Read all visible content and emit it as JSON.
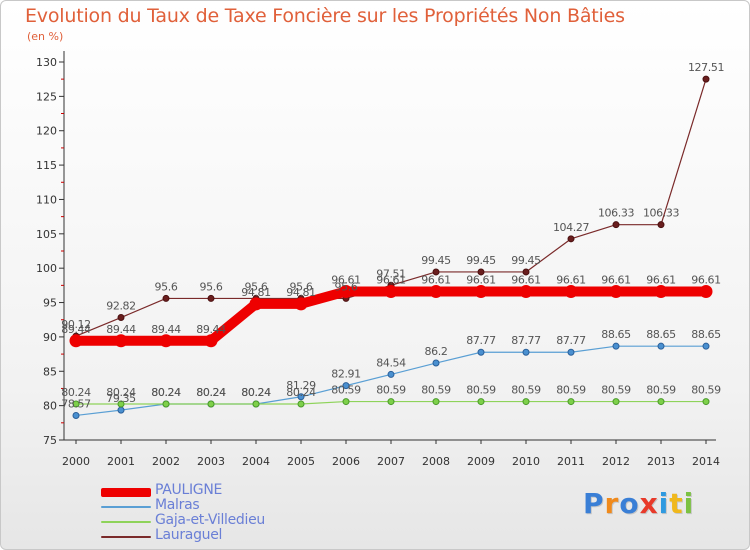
{
  "title": "Evolution du Taux de Taxe Foncière sur les Propriétés Non Bâties",
  "subtitle": "(en %)",
  "logo": {
    "letters": [
      "P",
      "r",
      "o",
      "x",
      "i",
      "t",
      "i"
    ],
    "colors": [
      "#3a7fd6",
      "#f08a1c",
      "#3a7fd6",
      "#e83a2a",
      "#2f9ae0",
      "#f0b81c",
      "#7cc242"
    ]
  },
  "chart_data": {
    "type": "line",
    "title": "Evolution du Taux de Taxe Foncière sur les Propriétés Non Bâties",
    "ylabel": "(en %)",
    "x": [
      2000,
      2001,
      2002,
      2003,
      2004,
      2005,
      2006,
      2007,
      2008,
      2009,
      2010,
      2011,
      2012,
      2013,
      2014
    ],
    "x_labels": [
      "2000",
      "2001",
      "2002",
      "2003",
      "2004",
      "2005",
      "2006",
      "2007",
      "2008",
      "2009",
      "2010",
      "2011",
      "2012",
      "2013",
      "2014"
    ],
    "ylim": [
      75,
      130
    ],
    "yticks": [
      75,
      80,
      85,
      90,
      95,
      100,
      105,
      110,
      115,
      120,
      125,
      130
    ],
    "ytick_labels": [
      "75",
      "80",
      "85",
      "90",
      "95",
      "100",
      "105",
      "110",
      "115",
      "120",
      "125",
      "130"
    ],
    "series": [
      {
        "name": "PAULIGNE",
        "color": "#ee0000",
        "values": [
          89.44,
          89.44,
          89.44,
          89.44,
          94.81,
          94.81,
          96.61,
          96.61,
          96.61,
          96.61,
          96.61,
          96.61,
          96.61,
          96.61,
          96.61
        ],
        "labels": [
          "89.44",
          "89.44",
          "89.44",
          "89.44",
          "94.81",
          "94.81",
          "96.61",
          "96.61",
          "96.61",
          "96.61",
          "96.61",
          "96.61",
          "96.61",
          "96.61",
          "96.61"
        ]
      },
      {
        "name": "Malras",
        "color": "#5a9fd4",
        "values": [
          78.57,
          79.35,
          80.24,
          80.24,
          80.24,
          81.29,
          82.91,
          84.54,
          86.2,
          87.77,
          87.77,
          87.77,
          88.65,
          88.65,
          88.65
        ],
        "labels": [
          "78.57",
          "79.35",
          "80.24",
          "80.24",
          "80.24",
          "81.29",
          "82.91",
          "84.54",
          "86.2",
          "87.77",
          "87.77",
          "87.77",
          "88.65",
          "88.65",
          "88.65"
        ]
      },
      {
        "name": "Gaja-et-Villedieu",
        "color": "#8ed35a",
        "values": [
          80.24,
          80.24,
          80.24,
          80.24,
          80.24,
          80.24,
          80.59,
          80.59,
          80.59,
          80.59,
          80.59,
          80.59,
          80.59,
          80.59,
          80.59
        ],
        "labels": [
          "80.24",
          "80.24",
          "80.24",
          "80.24",
          "80.24",
          "80.24",
          "80.59",
          "80.59",
          "80.59",
          "80.59",
          "80.59",
          "80.59",
          "80.59",
          "80.59",
          "80.59"
        ]
      },
      {
        "name": "Lauraguel",
        "color": "#7a2a2a",
        "values": [
          90.12,
          92.82,
          95.6,
          95.6,
          95.6,
          95.6,
          95.6,
          97.51,
          99.45,
          99.45,
          99.45,
          104.27,
          106.33,
          106.33,
          127.51
        ],
        "labels": [
          "90.12",
          "92.82",
          "95.6",
          "95.6",
          "95.6",
          "95.6",
          "95.6",
          "97.51",
          "99.45",
          "99.45",
          "99.45",
          "104.27",
          "106.33",
          "106.33",
          "127.51"
        ]
      }
    ],
    "legend": [
      "PAULIGNE",
      "Malras",
      "Gaja-et-Villedieu",
      "Lauraguel"
    ],
    "legend_placement": "bottom-left",
    "grid": false
  }
}
